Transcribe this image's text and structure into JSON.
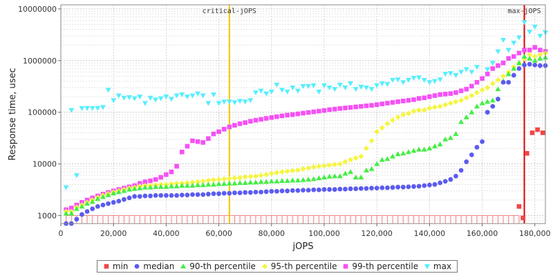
{
  "chart_data": {
    "type": "scatter",
    "xlabel": "jOPS",
    "ylabel": "Response time, usec",
    "xlim": [
      0,
      184000
    ],
    "ylim": [
      700,
      12000000
    ],
    "yscale": "log",
    "xticks": [
      0,
      20000,
      40000,
      60000,
      80000,
      100000,
      120000,
      140000,
      160000,
      180000
    ],
    "xtick_labels": [
      "0",
      "20,000",
      "40,000",
      "60,000",
      "80,000",
      "100,000",
      "120,000",
      "140,000",
      "160,000",
      "180,000"
    ],
    "yticks": [
      1000,
      10000,
      100000,
      1000000,
      10000000
    ],
    "ytick_labels": [
      "1000",
      "10000",
      "100000",
      "1000000",
      "10000000"
    ],
    "grid": true,
    "legend_position": "bottom",
    "vertical_lines": [
      {
        "label": "critical-jOPS",
        "x": 64000,
        "color": "#f5c400"
      },
      {
        "label": "max-jOPS",
        "x": 176000,
        "color": "#dd0000"
      }
    ],
    "series": [
      {
        "name": "min",
        "color": "#f04545",
        "marker": "square",
        "x": [
          174000,
          175500,
          177000,
          179000,
          181000,
          183000
        ],
        "y": [
          1500,
          900,
          16000,
          40000,
          46000,
          40000
        ]
      },
      {
        "name": "median",
        "color": "#5b5bf0",
        "marker": "circle",
        "x": [
          2000,
          4000,
          6000,
          8000,
          10000,
          12000,
          14000,
          16000,
          18000,
          20000,
          22000,
          24000,
          26000,
          28000,
          30000,
          32000,
          34000,
          36000,
          38000,
          40000,
          42000,
          44000,
          46000,
          48000,
          50000,
          52000,
          54000,
          56000,
          58000,
          60000,
          62000,
          64000,
          66000,
          68000,
          70000,
          72000,
          74000,
          76000,
          78000,
          80000,
          82000,
          84000,
          86000,
          88000,
          90000,
          92000,
          94000,
          96000,
          98000,
          100000,
          102000,
          104000,
          106000,
          108000,
          110000,
          112000,
          114000,
          116000,
          118000,
          120000,
          122000,
          124000,
          126000,
          128000,
          130000,
          132000,
          134000,
          136000,
          138000,
          140000,
          142000,
          144000,
          146000,
          148000,
          150000,
          152000,
          154000,
          156000,
          158000,
          160000,
          162000,
          164000,
          166000,
          168000,
          170000,
          172000,
          174000,
          176000,
          178000,
          180000,
          182000,
          184000
        ],
        "y": [
          700,
          700,
          850,
          1050,
          1200,
          1350,
          1500,
          1600,
          1700,
          1800,
          1900,
          2050,
          2200,
          2350,
          2350,
          2400,
          2400,
          2450,
          2450,
          2450,
          2450,
          2450,
          2500,
          2500,
          2550,
          2550,
          2550,
          2600,
          2650,
          2650,
          2700,
          2700,
          2750,
          2750,
          2800,
          2800,
          2850,
          2850,
          2900,
          2950,
          2950,
          3000,
          3000,
          3050,
          3050,
          3100,
          3100,
          3150,
          3150,
          3200,
          3200,
          3200,
          3250,
          3250,
          3300,
          3300,
          3350,
          3350,
          3400,
          3400,
          3450,
          3450,
          3500,
          3550,
          3550,
          3600,
          3650,
          3700,
          3800,
          3900,
          4000,
          4300,
          4600,
          5000,
          5800,
          7500,
          11000,
          15000,
          21000,
          27000,
          100000,
          130000,
          180000,
          380000,
          380000,
          520000,
          700000,
          820000,
          850000,
          820000,
          800000,
          800000
        ]
      },
      {
        "name": "90-th percentile",
        "color": "#44ee44",
        "marker": "triangle-up",
        "x": [
          2000,
          4000,
          6000,
          8000,
          10000,
          12000,
          14000,
          16000,
          18000,
          20000,
          22000,
          24000,
          26000,
          28000,
          30000,
          32000,
          34000,
          36000,
          38000,
          40000,
          42000,
          44000,
          46000,
          48000,
          50000,
          52000,
          54000,
          56000,
          58000,
          60000,
          62000,
          64000,
          66000,
          68000,
          70000,
          72000,
          74000,
          76000,
          78000,
          80000,
          82000,
          84000,
          86000,
          88000,
          90000,
          92000,
          94000,
          96000,
          98000,
          100000,
          102000,
          104000,
          106000,
          108000,
          110000,
          112000,
          114000,
          116000,
          118000,
          120000,
          122000,
          124000,
          126000,
          128000,
          130000,
          132000,
          134000,
          136000,
          138000,
          140000,
          142000,
          144000,
          146000,
          148000,
          150000,
          152000,
          154000,
          156000,
          158000,
          160000,
          162000,
          164000,
          166000,
          168000,
          170000,
          172000,
          174000,
          176000,
          178000,
          180000,
          182000,
          184000
        ],
        "y": [
          1100,
          1100,
          1350,
          1500,
          1700,
          1850,
          2100,
          2300,
          2500,
          2700,
          2850,
          3000,
          3200,
          3300,
          3400,
          3500,
          3500,
          3600,
          3600,
          3600,
          3700,
          3700,
          3800,
          3800,
          3800,
          3900,
          3900,
          4000,
          4000,
          4100,
          4100,
          4200,
          4200,
          4300,
          4300,
          4400,
          4400,
          4500,
          4500,
          4600,
          4600,
          4700,
          4700,
          4800,
          4800,
          4900,
          5000,
          5100,
          5300,
          5500,
          5700,
          5800,
          5800,
          6500,
          7000,
          5500,
          5500,
          7500,
          8000,
          10000,
          12000,
          12500,
          14000,
          15500,
          16000,
          17000,
          18000,
          19000,
          19000,
          20000,
          22000,
          24000,
          30000,
          32000,
          38000,
          65000,
          80000,
          100000,
          130000,
          150000,
          160000,
          170000,
          280000,
          400000,
          550000,
          700000,
          900000,
          1200000,
          1100000,
          1000000,
          1100000,
          1150000
        ]
      },
      {
        "name": "95-th percentile",
        "color": "#f5f542",
        "marker": "diamond",
        "x": [
          2000,
          4000,
          6000,
          8000,
          10000,
          12000,
          14000,
          16000,
          18000,
          20000,
          22000,
          24000,
          26000,
          28000,
          30000,
          32000,
          34000,
          36000,
          38000,
          40000,
          42000,
          44000,
          46000,
          48000,
          50000,
          52000,
          54000,
          56000,
          58000,
          60000,
          62000,
          64000,
          66000,
          68000,
          70000,
          72000,
          74000,
          76000,
          78000,
          80000,
          82000,
          84000,
          86000,
          88000,
          90000,
          92000,
          94000,
          96000,
          98000,
          100000,
          102000,
          104000,
          106000,
          108000,
          110000,
          112000,
          114000,
          116000,
          118000,
          120000,
          122000,
          124000,
          126000,
          128000,
          130000,
          132000,
          134000,
          136000,
          138000,
          140000,
          142000,
          144000,
          146000,
          148000,
          150000,
          152000,
          154000,
          156000,
          158000,
          160000,
          162000,
          164000,
          166000,
          168000,
          170000,
          172000,
          174000,
          176000,
          178000,
          180000,
          182000,
          184000
        ],
        "y": [
          1200,
          1200,
          1450,
          1600,
          1800,
          2000,
          2250,
          2450,
          2650,
          2850,
          3000,
          3200,
          3400,
          3500,
          3700,
          3800,
          3800,
          3900,
          4000,
          4000,
          4100,
          4200,
          4200,
          4300,
          4400,
          4500,
          4600,
          4800,
          4900,
          5000,
          5100,
          5200,
          5300,
          5400,
          5600,
          5700,
          5800,
          6000,
          6200,
          6500,
          6800,
          7000,
          7200,
          7400,
          7600,
          8000,
          8300,
          8700,
          9000,
          9200,
          9500,
          9700,
          10000,
          11000,
          12000,
          13000,
          14000,
          20000,
          28000,
          42000,
          50000,
          60000,
          70000,
          80000,
          90000,
          95000,
          105000,
          110000,
          110000,
          120000,
          125000,
          130000,
          140000,
          150000,
          160000,
          170000,
          190000,
          210000,
          240000,
          270000,
          300000,
          360000,
          420000,
          500000,
          600000,
          750000,
          900000,
          1100000,
          1300000,
          1200000,
          1300000,
          1400000
        ]
      },
      {
        "name": "99-th percentile",
        "color": "#f550f5",
        "marker": "square",
        "x": [
          2000,
          4000,
          6000,
          8000,
          10000,
          12000,
          14000,
          16000,
          18000,
          20000,
          22000,
          24000,
          26000,
          28000,
          30000,
          32000,
          34000,
          36000,
          38000,
          40000,
          42000,
          44000,
          46000,
          48000,
          50000,
          52000,
          54000,
          56000,
          58000,
          60000,
          62000,
          64000,
          66000,
          68000,
          70000,
          72000,
          74000,
          76000,
          78000,
          80000,
          82000,
          84000,
          86000,
          88000,
          90000,
          92000,
          94000,
          96000,
          98000,
          100000,
          102000,
          104000,
          106000,
          108000,
          110000,
          112000,
          114000,
          116000,
          118000,
          120000,
          122000,
          124000,
          126000,
          128000,
          130000,
          132000,
          134000,
          136000,
          138000,
          140000,
          142000,
          144000,
          146000,
          148000,
          150000,
          152000,
          154000,
          156000,
          158000,
          160000,
          162000,
          164000,
          166000,
          168000,
          170000,
          172000,
          174000,
          176000,
          178000,
          180000,
          182000,
          184000
        ],
        "y": [
          1300,
          1400,
          1600,
          1800,
          2000,
          2200,
          2400,
          2600,
          2800,
          3000,
          3200,
          3400,
          3600,
          3800,
          4200,
          4500,
          4700,
          5000,
          5500,
          6200,
          7000,
          9000,
          17000,
          22000,
          28000,
          27000,
          26000,
          31000,
          38000,
          42000,
          47000,
          52000,
          56000,
          60000,
          63000,
          67000,
          70000,
          73000,
          76000,
          79000,
          82000,
          85000,
          88000,
          90000,
          93000,
          96000,
          99000,
          102000,
          105000,
          108000,
          112000,
          115000,
          118000,
          121000,
          124000,
          127000,
          130000,
          133000,
          136000,
          140000,
          145000,
          150000,
          155000,
          160000,
          165000,
          170000,
          175000,
          185000,
          190000,
          200000,
          210000,
          220000,
          225000,
          230000,
          240000,
          260000,
          280000,
          320000,
          380000,
          450000,
          550000,
          700000,
          800000,
          900000,
          1100000,
          1200000,
          1400000,
          1600000,
          1600000,
          1800000,
          1600000,
          1500000
        ]
      },
      {
        "name": "max",
        "color": "#55eeff",
        "marker": "triangle-down",
        "x": [
          2000,
          4000,
          6000,
          8000,
          10000,
          12000,
          14000,
          16000,
          18000,
          20000,
          22000,
          24000,
          26000,
          28000,
          30000,
          32000,
          34000,
          36000,
          38000,
          40000,
          42000,
          44000,
          46000,
          48000,
          50000,
          52000,
          54000,
          56000,
          58000,
          60000,
          62000,
          64000,
          66000,
          68000,
          70000,
          72000,
          74000,
          76000,
          78000,
          80000,
          82000,
          84000,
          86000,
          88000,
          90000,
          92000,
          94000,
          96000,
          98000,
          100000,
          102000,
          104000,
          106000,
          108000,
          110000,
          112000,
          114000,
          116000,
          118000,
          120000,
          122000,
          124000,
          126000,
          128000,
          130000,
          132000,
          134000,
          136000,
          138000,
          140000,
          142000,
          144000,
          146000,
          148000,
          150000,
          152000,
          154000,
          156000,
          158000,
          160000,
          162000,
          164000,
          166000,
          168000,
          170000,
          172000,
          174000,
          176000,
          178000,
          180000,
          182000,
          184000
        ],
        "y": [
          3500,
          110000,
          6000,
          120000,
          120000,
          120000,
          120000,
          125000,
          270000,
          170000,
          210000,
          190000,
          195000,
          185000,
          200000,
          150000,
          190000,
          175000,
          185000,
          200000,
          180000,
          210000,
          220000,
          200000,
          210000,
          230000,
          210000,
          150000,
          220000,
          150000,
          160000,
          160000,
          155000,
          165000,
          160000,
          170000,
          240000,
          260000,
          230000,
          250000,
          340000,
          270000,
          250000,
          300000,
          260000,
          320000,
          320000,
          330000,
          250000,
          330000,
          300000,
          280000,
          340000,
          300000,
          360000,
          280000,
          310000,
          300000,
          280000,
          330000,
          360000,
          350000,
          420000,
          430000,
          380000,
          420000,
          460000,
          470000,
          420000,
          380000,
          400000,
          430000,
          550000,
          570000,
          520000,
          600000,
          680000,
          600000,
          750000,
          450000,
          680000,
          900000,
          1500000,
          2500000,
          1600000,
          2200000,
          2800000,
          5500000,
          3600000,
          4500000,
          3000000,
          3500000
        ]
      }
    ],
    "extra_marks": {
      "baseline_ticks_y": 1000,
      "baseline_ticks_color": "#f08080",
      "baseline_ticks_x_range": [
        2000,
        174000
      ],
      "baseline_ticks_step": 2000
    }
  }
}
